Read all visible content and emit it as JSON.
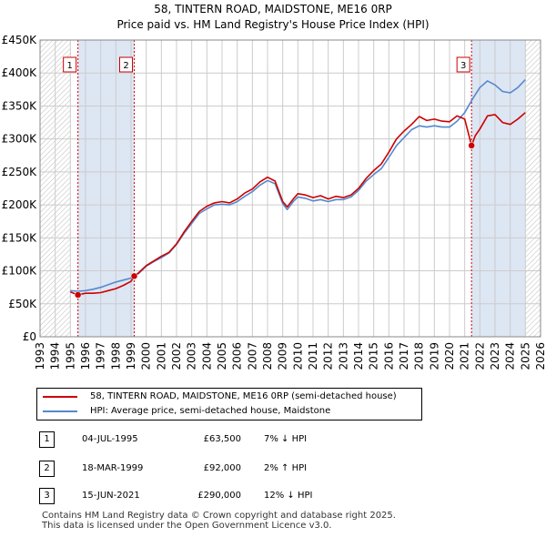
{
  "title_line1": "58, TINTERN ROAD, MAIDSTONE, ME16 0RP",
  "title_line2": "Price paid vs. HM Land Registry's House Price Index (HPI)",
  "colors": {
    "property": "#cc0000",
    "hpi": "#5588cc",
    "marker_border": "#cc0000",
    "shade": "#dde6f3",
    "vline": "#cc0000",
    "grid": "#cccccc"
  },
  "legend": {
    "property_label": "58, TINTERN ROAD, MAIDSTONE, ME16 0RP (semi-detached house)",
    "hpi_label": "HPI: Average price, semi-detached house, Maidstone"
  },
  "sales": [
    {
      "num": "1",
      "date": "04-JUL-1995",
      "price": "£63,500",
      "hpi_rel": "7% ↓ HPI"
    },
    {
      "num": "2",
      "date": "18-MAR-1999",
      "price": "£92,000",
      "hpi_rel": "2% ↑ HPI"
    },
    {
      "num": "3",
      "date": "15-JUN-2021",
      "price": "£290,000",
      "hpi_rel": "12% ↓ HPI"
    }
  ],
  "footer_line1": "Contains HM Land Registry data © Crown copyright and database right 2025.",
  "footer_line2": "This data is licensed under the Open Government Licence v3.0.",
  "chart_data": {
    "type": "line",
    "title": "58, TINTERN ROAD, MAIDSTONE, ME16 0RP — Price paid vs. HM Land Registry's House Price Index (HPI)",
    "xlabel": "",
    "ylabel": "",
    "xlim": [
      1993,
      2026
    ],
    "ylim": [
      0,
      450000
    ],
    "x_ticks": [
      1993,
      1994,
      1995,
      1996,
      1997,
      1998,
      1999,
      2000,
      2001,
      2002,
      2003,
      2004,
      2005,
      2006,
      2007,
      2008,
      2009,
      2010,
      2011,
      2012,
      2013,
      2014,
      2015,
      2016,
      2017,
      2018,
      2019,
      2020,
      2021,
      2022,
      2023,
      2024,
      2025,
      2026
    ],
    "y_ticks": [
      {
        "value": 0,
        "label": "£0"
      },
      {
        "value": 50000,
        "label": "£50K"
      },
      {
        "value": 100000,
        "label": "£100K"
      },
      {
        "value": 150000,
        "label": "£150K"
      },
      {
        "value": 200000,
        "label": "£200K"
      },
      {
        "value": 250000,
        "label": "£250K"
      },
      {
        "value": 300000,
        "label": "£300K"
      },
      {
        "value": 350000,
        "label": "£350K"
      },
      {
        "value": 400000,
        "label": "£400K"
      },
      {
        "value": 450000,
        "label": "£450K"
      }
    ],
    "hatched_ranges": [
      [
        1993,
        1995.0
      ],
      [
        2025.0,
        2026
      ]
    ],
    "sale_markers": [
      {
        "num": "1",
        "x": 1995.5,
        "y": 63500
      },
      {
        "num": "2",
        "x": 1999.21,
        "y": 92000
      },
      {
        "num": "3",
        "x": 2021.45,
        "y": 290000
      }
    ],
    "series": [
      {
        "name": "58, TINTERN ROAD, MAIDSTONE, ME16 0RP (semi-detached house)",
        "x": [
          1995.0,
          1995.5,
          1996,
          1996.5,
          1997,
          1997.5,
          1998,
          1998.5,
          1999,
          1999.21,
          1999.5,
          2000,
          2000.5,
          2001,
          2001.5,
          2002,
          2002.5,
          2003,
          2003.5,
          2004,
          2004.5,
          2005,
          2005.5,
          2006,
          2006.5,
          2007,
          2007.5,
          2008,
          2008.5,
          2009,
          2009.3,
          2009.7,
          2010,
          2010.5,
          2011,
          2011.5,
          2012,
          2012.5,
          2013,
          2013.5,
          2014,
          2014.5,
          2015,
          2015.5,
          2016,
          2016.5,
          2017,
          2017.5,
          2018,
          2018.5,
          2019,
          2019.5,
          2020,
          2020.5,
          2021,
          2021.45,
          2021.7,
          2022,
          2022.5,
          2023,
          2023.5,
          2024,
          2024.5,
          2025
        ],
        "values": [
          68000,
          63500,
          66000,
          66000,
          67000,
          70000,
          73000,
          78000,
          84000,
          92000,
          97000,
          108000,
          115000,
          122000,
          128000,
          141000,
          159000,
          175000,
          190000,
          198000,
          203000,
          205000,
          203000,
          209000,
          218000,
          224000,
          235000,
          242000,
          236000,
          205000,
          197000,
          209000,
          217000,
          215000,
          211000,
          214000,
          209000,
          213000,
          211000,
          215000,
          225000,
          240000,
          252000,
          262000,
          280000,
          300000,
          312000,
          322000,
          334000,
          328000,
          330000,
          327000,
          326000,
          335000,
          330000,
          290000,
          305000,
          315000,
          335000,
          337000,
          325000,
          322000,
          330000,
          340000
        ]
      },
      {
        "name": "HPI: Average price, semi-detached house, Maidstone",
        "x": [
          1995.0,
          1995.5,
          1996,
          1996.5,
          1997,
          1997.5,
          1998,
          1998.5,
          1999,
          1999.5,
          2000,
          2000.5,
          2001,
          2001.5,
          2002,
          2002.5,
          2003,
          2003.5,
          2004,
          2004.5,
          2005,
          2005.5,
          2006,
          2006.5,
          2007,
          2007.5,
          2008,
          2008.5,
          2009,
          2009.3,
          2009.7,
          2010,
          2010.5,
          2011,
          2011.5,
          2012,
          2012.5,
          2013,
          2013.5,
          2014,
          2014.5,
          2015,
          2015.5,
          2016,
          2016.5,
          2017,
          2017.5,
          2018,
          2018.5,
          2019,
          2019.5,
          2020,
          2020.5,
          2021,
          2021.5,
          2022,
          2022.5,
          2023,
          2023.5,
          2024,
          2024.5,
          2025
        ],
        "values": [
          70000,
          69000,
          70000,
          72000,
          75000,
          79000,
          83000,
          86000,
          89000,
          96000,
          107000,
          114000,
          120000,
          127000,
          140000,
          157000,
          172000,
          187000,
          194000,
          200000,
          201000,
          200000,
          205000,
          213000,
          220000,
          230000,
          237000,
          232000,
          202000,
          193000,
          205000,
          212000,
          210000,
          206000,
          208000,
          205000,
          208000,
          208000,
          212000,
          222000,
          236000,
          246000,
          255000,
          272000,
          290000,
          302000,
          314000,
          320000,
          318000,
          320000,
          318000,
          318000,
          327000,
          340000,
          360000,
          378000,
          388000,
          382000,
          372000,
          370000,
          378000,
          390000
        ]
      }
    ]
  }
}
